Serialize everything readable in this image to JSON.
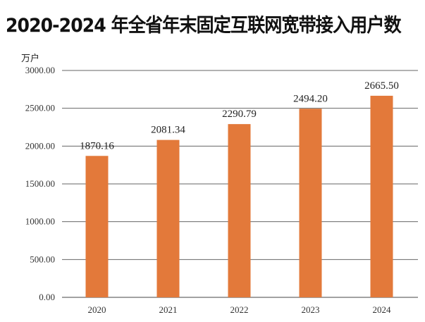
{
  "chart_data": {
    "type": "bar",
    "title": "2020-2024 年全省年末固定互联网宽带接入用户数",
    "ylabel": "万户",
    "xlabel": "",
    "categories": [
      "2020",
      "2021",
      "2022",
      "2023",
      "2024"
    ],
    "values": [
      1870.16,
      2081.34,
      2290.79,
      2494.2,
      2665.5
    ],
    "value_labels": [
      "1870.16",
      "2081.34",
      "2290.79",
      "2494.20",
      "2665.50"
    ],
    "ylim": [
      0,
      3000
    ],
    "yticks": [
      0,
      500,
      1000,
      1500,
      2000,
      2500,
      3000
    ],
    "ytick_labels": [
      "0.00",
      "500.00",
      "1000.00",
      "1500.00",
      "2000.00",
      "2500.00",
      "3000.00"
    ],
    "grid": true,
    "bar_color": "#E3793A"
  }
}
